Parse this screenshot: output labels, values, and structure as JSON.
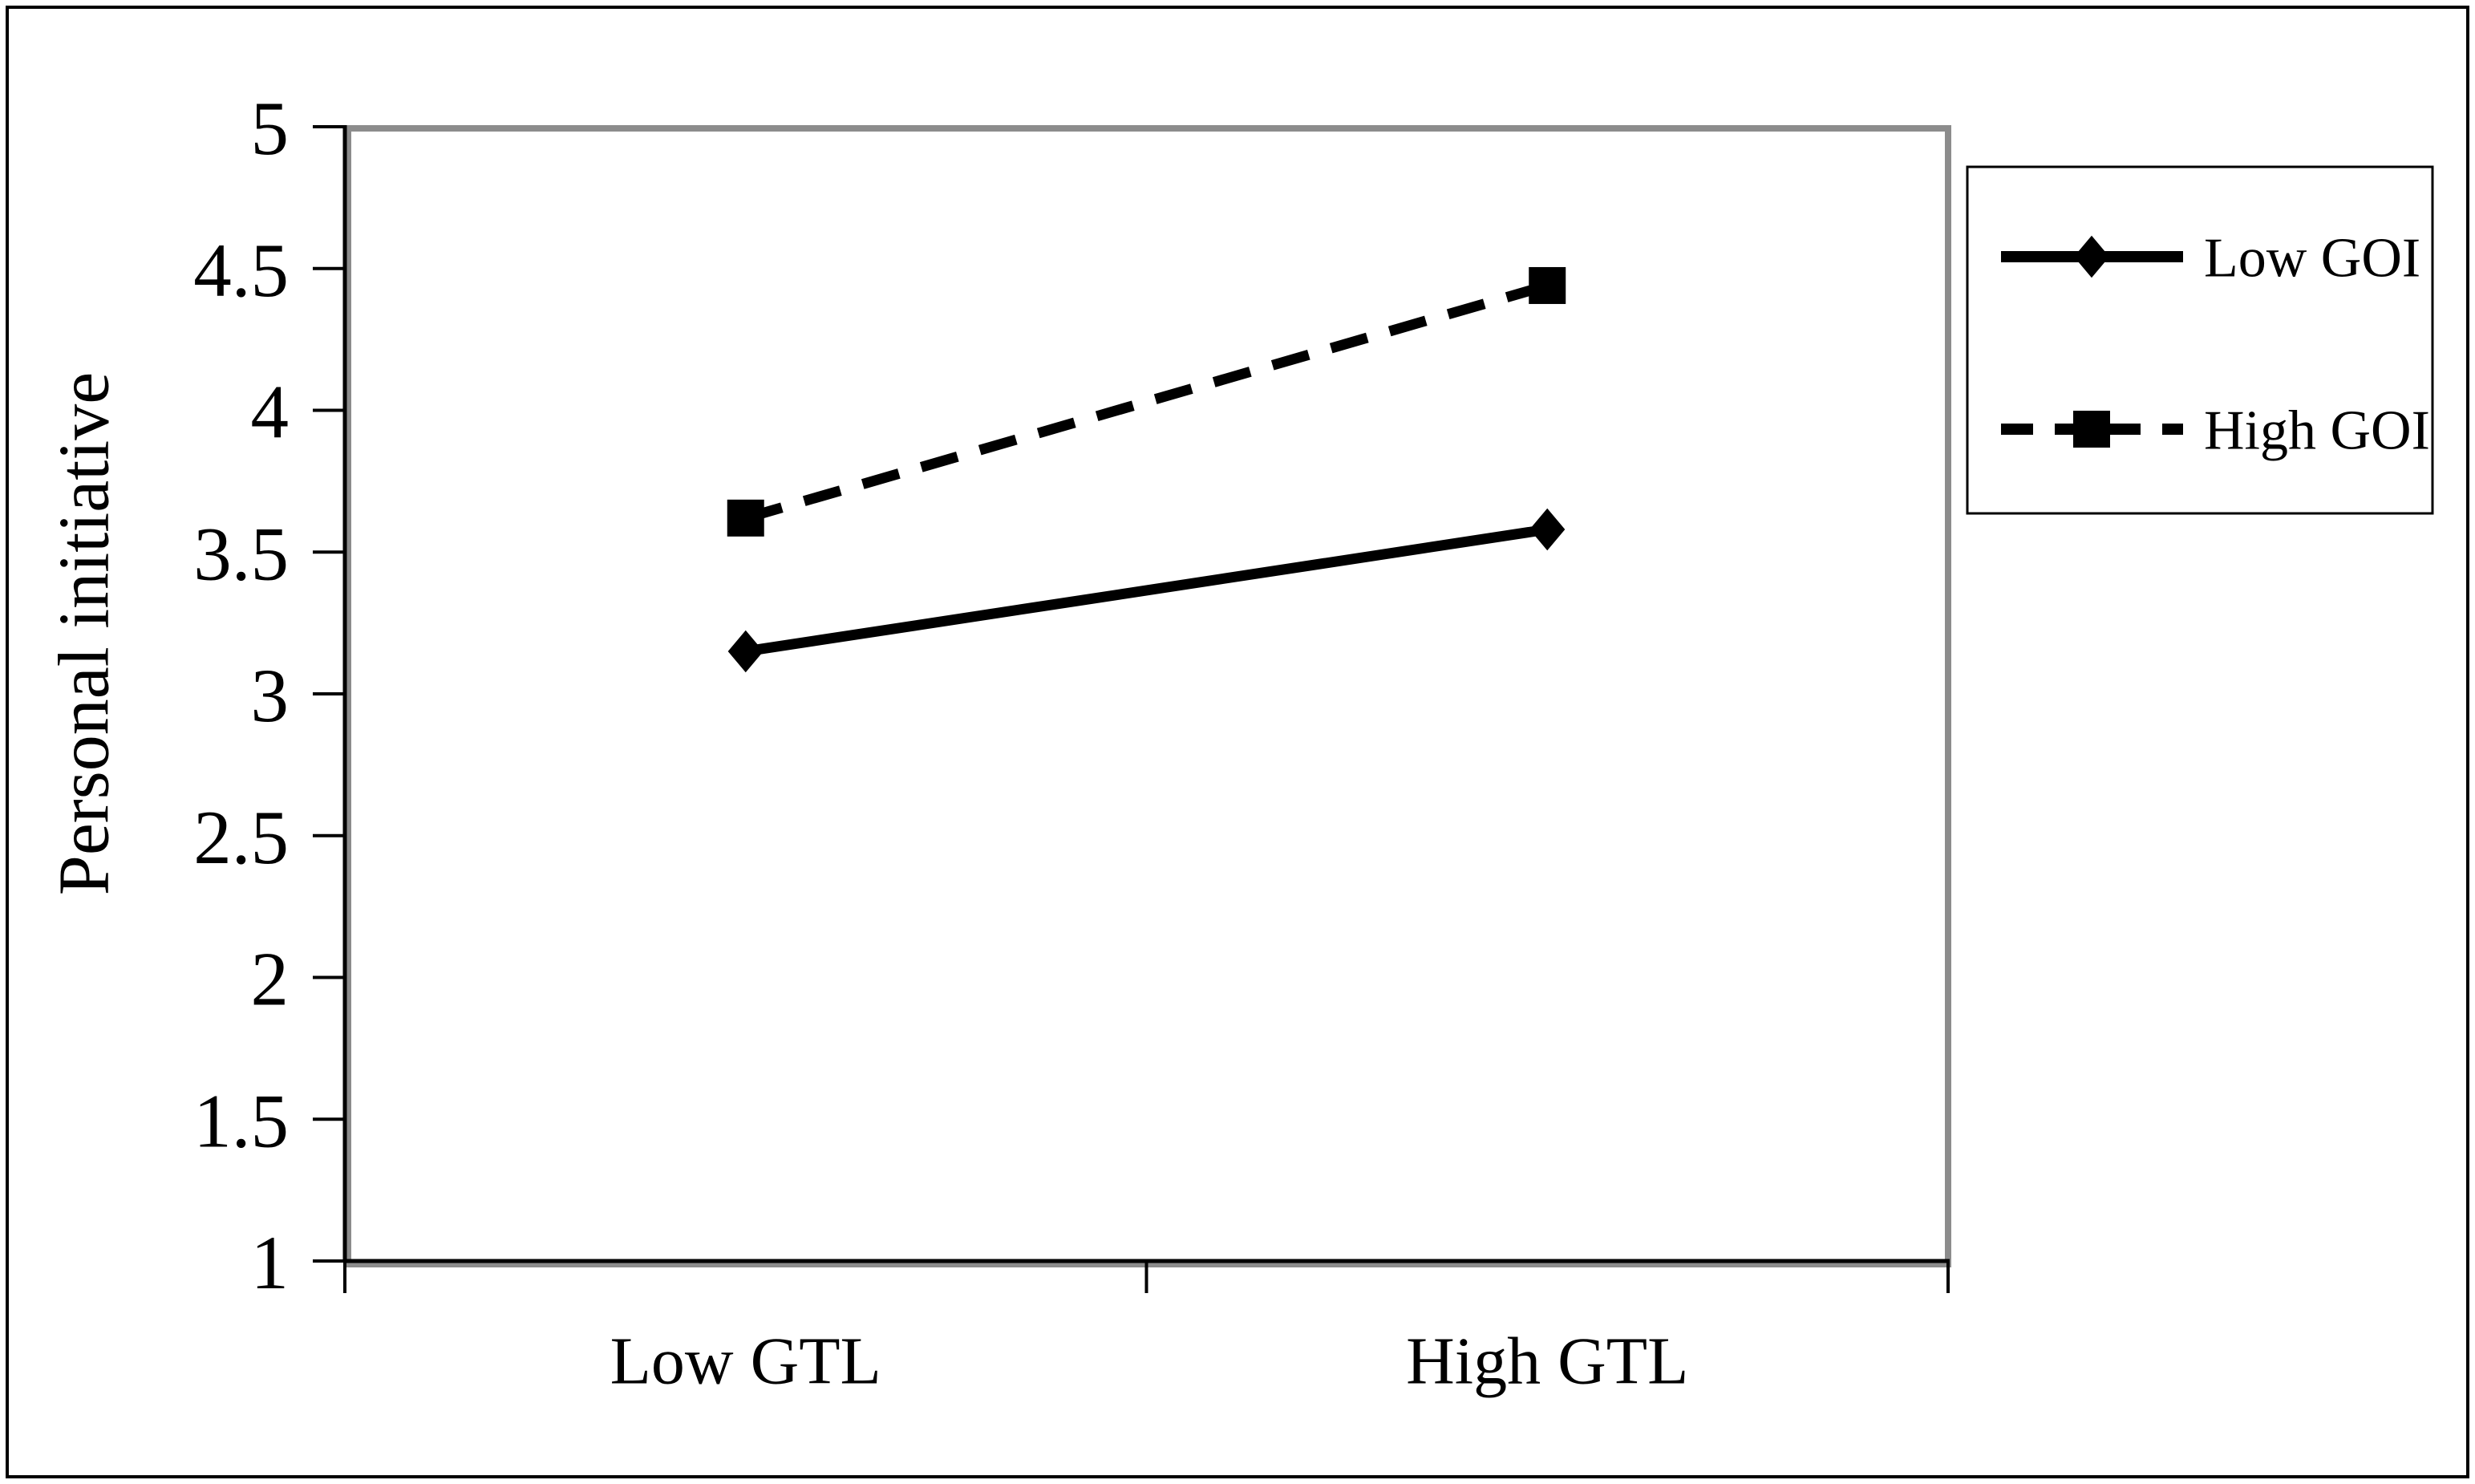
{
  "chart_data": {
    "type": "line",
    "title": "",
    "categories": [
      "Low GTL",
      "High GTL"
    ],
    "series": [
      {
        "name": "Low GOI",
        "values": [
          3.15,
          3.58
        ],
        "marker": "diamond",
        "line": "solid"
      },
      {
        "name": "High GOI",
        "values": [
          3.62,
          4.44
        ],
        "marker": "square",
        "line": "dashed"
      }
    ],
    "xlabel": "",
    "ylabel": "Personal initiative",
    "ylim": [
      1,
      5
    ],
    "yticks": [
      5,
      4.5,
      4,
      3.5,
      3,
      2.5,
      2,
      1.5,
      1
    ],
    "ytick_labels": [
      "5",
      "4.5",
      "4",
      "3.5",
      "3",
      "2.5",
      "2",
      "1.5",
      "1"
    ],
    "grid": false,
    "legend_position": "right",
    "colors": {
      "series": "#000000",
      "plot_border": "#8c8c8c",
      "axis": "#000000",
      "text": "#000000",
      "background": "#ffffff"
    }
  }
}
